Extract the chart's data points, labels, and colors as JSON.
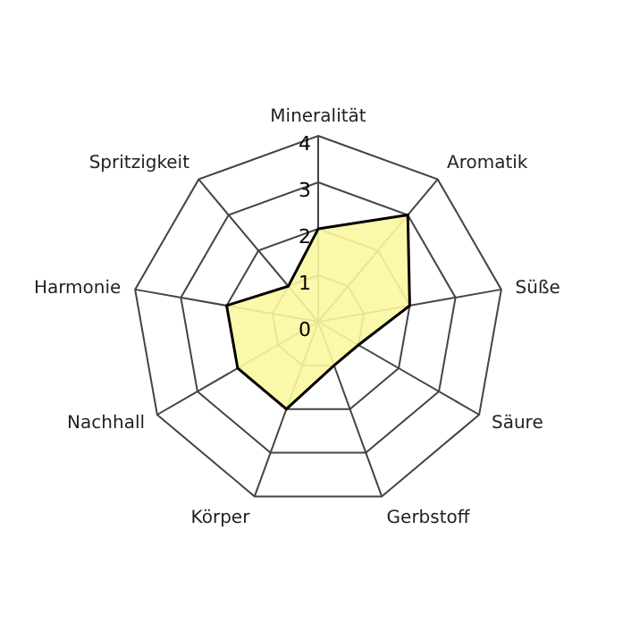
{
  "chart_data": {
    "type": "radar",
    "categories": [
      "Mineralität",
      "Aromatik",
      "Süße",
      "Säure",
      "Gerbstoff",
      "Körper",
      "Nachhall",
      "Harmonie",
      "Spritzigkeit"
    ],
    "series": [
      {
        "color": "#fbf7a0",
        "values": [
          2,
          3,
          2,
          1,
          1,
          2,
          2,
          2,
          1
        ]
      }
    ],
    "ylim": [
      0,
      4
    ],
    "yticks": [
      0,
      1,
      2,
      3,
      4
    ],
    "grid": true,
    "legend": false
  }
}
